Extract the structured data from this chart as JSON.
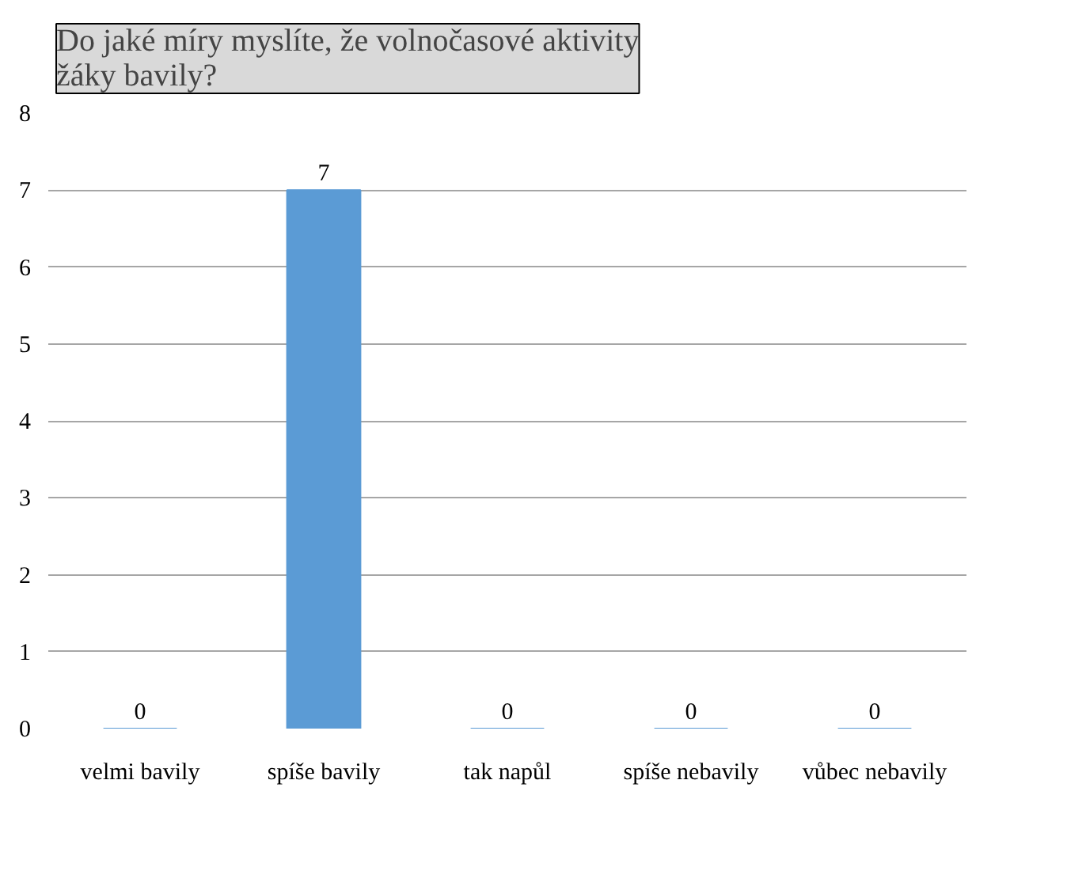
{
  "chart_data": {
    "type": "bar",
    "title": "Do jaké míry myslíte, že volnočasové aktivity žáky bavily?",
    "categories": [
      "velmi bavily",
      "spíše bavily",
      "tak napůl",
      "spíše nebavily",
      "vůbec nebavily"
    ],
    "values": [
      0,
      7,
      0,
      0,
      0
    ],
    "color": "#5b9bd5",
    "ylim": [
      0,
      8
    ],
    "yticks": [
      0,
      1,
      2,
      3,
      4,
      5,
      6,
      7,
      8
    ],
    "grid": "y",
    "data_labels": true
  }
}
